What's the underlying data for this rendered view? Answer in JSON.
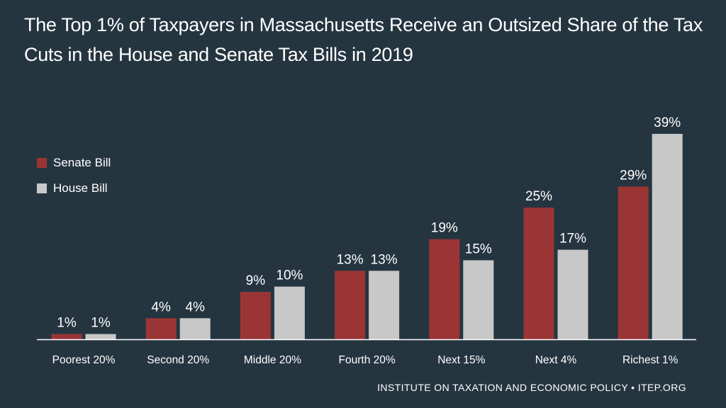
{
  "title": "The Top 1% of Taxpayers in Massachusetts Receive an Outsized Share of the Tax Cuts in the House and Senate Tax Bills in 2019",
  "source": "INSTITUTE ON TAXATION AND ECONOMIC POLICY • ITEP.ORG",
  "colors": {
    "background": "#253540",
    "senate": "#9b3535",
    "house": "#c8c8c8",
    "axis": "#ffffff"
  },
  "chart_data": {
    "type": "bar",
    "categories": [
      "Poorest 20%",
      "Second 20%",
      "Middle 20%",
      "Fourth 20%",
      "Next 15%",
      "Next 4%",
      "Richest 1%"
    ],
    "series": [
      {
        "name": "Senate Bill",
        "values": [
          1,
          4,
          9,
          13,
          19,
          25,
          29
        ],
        "labels": [
          "1%",
          "4%",
          "9%",
          "13%",
          "19%",
          "25%",
          "29%"
        ],
        "color": "#9b3535"
      },
      {
        "name": "House Bill",
        "values": [
          1,
          4,
          10,
          13,
          15,
          17,
          39
        ],
        "labels": [
          "1%",
          "4%",
          "10%",
          "13%",
          "15%",
          "17%",
          "39%"
        ],
        "color": "#c8c8c8"
      }
    ],
    "ylim": [
      0,
      39
    ],
    "grid": false,
    "legend_placement": "top-left"
  }
}
